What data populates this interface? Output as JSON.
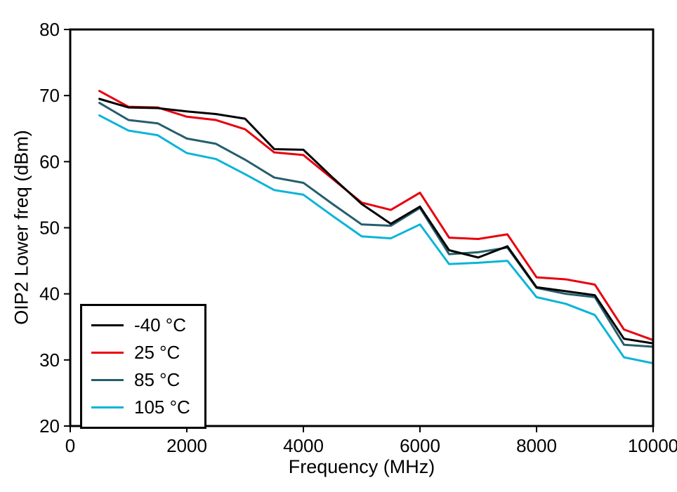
{
  "chart_data": {
    "type": "line",
    "xlabel": "Frequency (MHz)",
    "ylabel": "OIP2 Lower freq (dBm)",
    "xlim": [
      0,
      10000
    ],
    "ylim": [
      20,
      80
    ],
    "xticks": [
      0,
      2000,
      4000,
      6000,
      8000,
      10000
    ],
    "yticks": [
      20,
      30,
      40,
      50,
      60,
      70,
      80
    ],
    "grid": false,
    "legend_position": "lower-left",
    "x": [
      500,
      1000,
      1500,
      2000,
      2500,
      3000,
      3500,
      4000,
      4500,
      5000,
      5500,
      6000,
      6500,
      7000,
      7500,
      8000,
      8500,
      9000,
      9500,
      10000
    ],
    "series": [
      {
        "name": "-40 °C",
        "color": "#000000",
        "values": [
          69.5,
          68.2,
          68.1,
          67.6,
          67.2,
          66.5,
          61.9,
          61.8,
          57.6,
          53.6,
          50.6,
          53.2,
          46.6,
          45.5,
          47.2,
          41.0,
          40.4,
          39.8,
          33.2,
          32.5
        ]
      },
      {
        "name": "25 °C",
        "color": "#e8000d",
        "values": [
          70.7,
          68.3,
          68.2,
          66.8,
          66.3,
          64.9,
          61.4,
          61.0,
          57.4,
          53.8,
          52.7,
          55.3,
          48.5,
          48.3,
          49.0,
          42.5,
          42.2,
          41.4,
          34.6,
          33.0
        ]
      },
      {
        "name": "85 °C",
        "color": "#255e6d",
        "values": [
          68.9,
          66.3,
          65.8,
          63.5,
          62.7,
          60.3,
          57.6,
          56.8,
          53.6,
          50.5,
          50.3,
          53.0,
          46.0,
          46.3,
          47.0,
          40.9,
          40.0,
          39.5,
          32.3,
          32.0
        ]
      },
      {
        "name": "105 °C",
        "color": "#0ab4d8",
        "values": [
          67.0,
          64.7,
          64.0,
          61.3,
          60.4,
          58.1,
          55.7,
          55.0,
          51.8,
          48.7,
          48.4,
          50.5,
          44.5,
          44.7,
          45.0,
          39.5,
          38.5,
          36.8,
          30.4,
          29.5
        ]
      }
    ]
  }
}
